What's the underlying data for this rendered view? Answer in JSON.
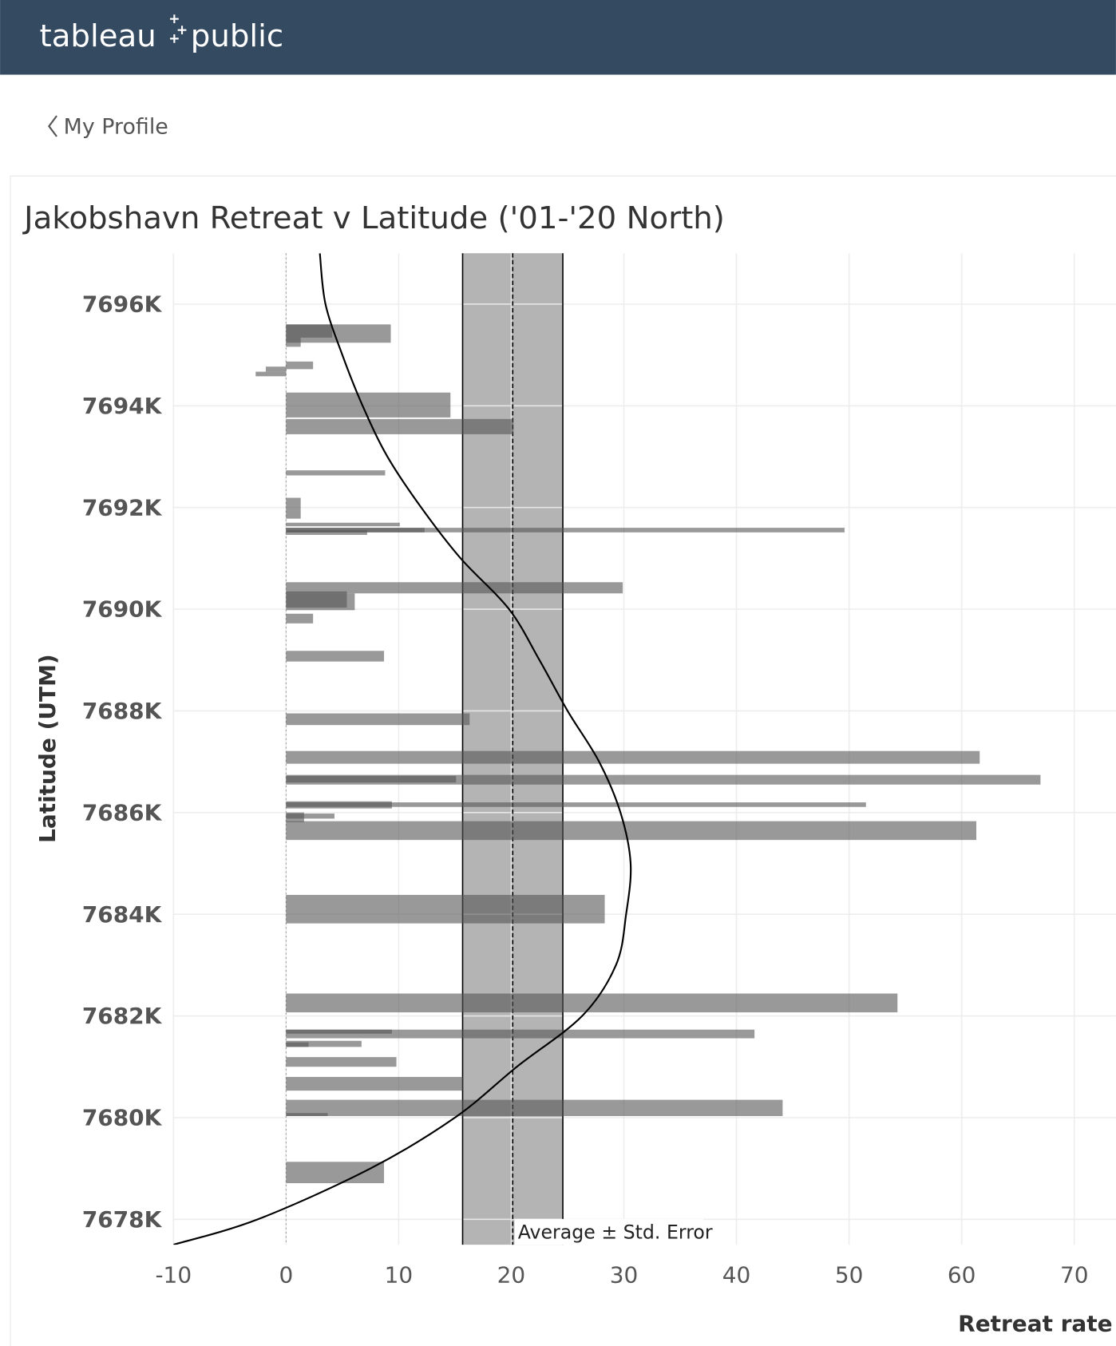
{
  "header": {
    "logo_left": "tableau",
    "logo_right": "public"
  },
  "nav": {
    "back": "My Profile"
  },
  "chart_data": {
    "type": "bar",
    "orientation": "horizontal",
    "title": "Jakobshavn Retreat v Latitude ('01-'20 North)",
    "x_label": "Retreat rate",
    "y_label": "Latitude (UTM)",
    "xlim": [
      -10,
      73.7
    ],
    "ylim": [
      7677.5,
      7697
    ],
    "xticks": [
      -10,
      0,
      10,
      20,
      30,
      40,
      50,
      60,
      70
    ],
    "yticks": [
      {
        "value": 7678,
        "label": "7678K"
      },
      {
        "value": 7680,
        "label": "7680K"
      },
      {
        "value": 7682,
        "label": "7682K"
      },
      {
        "value": 7684,
        "label": "7684K"
      },
      {
        "value": 7686,
        "label": "7686K"
      },
      {
        "value": 7688,
        "label": "7688K"
      },
      {
        "value": 7690,
        "label": "7690K"
      },
      {
        "value": 7692,
        "label": "7692K"
      },
      {
        "value": 7694,
        "label": "7694K"
      },
      {
        "value": 7696,
        "label": "7696K"
      }
    ],
    "grid": true,
    "zero_line": true,
    "bars": {
      "color": "#555555",
      "values": [
        9.3,
        4.1,
        1.3,
        2.4,
        -1.8,
        -2.7,
        14.6,
        20.2,
        8.8,
        1.3,
        10.1,
        49.6,
        12.3,
        7.2,
        29.9,
        6.1,
        5.4,
        2.4,
        8.7,
        16.3,
        61.6,
        67.0,
        15.1,
        51.5,
        9.4,
        4.3,
        1.6,
        61.3,
        28.3,
        54.3,
        41.6,
        9.4,
        6.7,
        2.0,
        9.8,
        15.7,
        44.1,
        3.7,
        8.7
      ],
      "lat_top": [
        7695.6,
        7695.6,
        7695.34,
        7694.87,
        7694.77,
        7694.67,
        7694.26,
        7693.74,
        7692.73,
        7692.19,
        7691.7,
        7691.6,
        7691.6,
        7691.55,
        7690.53,
        7690.31,
        7690.35,
        7689.91,
        7689.18,
        7687.95,
        7687.21,
        7686.74,
        7686.72,
        7686.2,
        7686.22,
        7685.98,
        7686.0,
        7685.83,
        7684.38,
        7682.44,
        7681.73,
        7681.73,
        7681.51,
        7681.48,
        7681.19,
        7680.8,
        7680.35,
        7680.09,
        7679.13
      ],
      "lat_bottom": [
        7695.24,
        7695.34,
        7695.16,
        7694.72,
        7694.67,
        7694.58,
        7693.77,
        7693.44,
        7692.63,
        7691.78,
        7691.63,
        7691.51,
        7691.51,
        7691.46,
        7690.31,
        7689.98,
        7690.03,
        7689.72,
        7688.97,
        7687.72,
        7686.96,
        7686.55,
        7686.59,
        7686.11,
        7686.08,
        7685.88,
        7685.81,
        7685.46,
        7683.82,
        7682.07,
        7681.56,
        7681.65,
        7681.39,
        7681.39,
        7681.0,
        7680.53,
        7680.03,
        7680.03,
        7678.71
      ]
    },
    "reference_band": {
      "label": "Average ± Std. Error",
      "average": 20.13,
      "std_error": 4.45,
      "color": "#b4b4b4"
    },
    "trend": {
      "color": "#000000",
      "lat": [
        7697,
        7696,
        7695,
        7694,
        7693,
        7692,
        7691,
        7690,
        7689,
        7688,
        7687,
        7686,
        7685,
        7684,
        7683,
        7682,
        7681,
        7680,
        7679,
        7678,
        7677.5
      ],
      "values": [
        3.0,
        3.5,
        5.0,
        6.8,
        9.0,
        12.0,
        15.5,
        19.8,
        22.5,
        25.0,
        27.8,
        29.7,
        30.6,
        30.2,
        29.3,
        26.3,
        20.5,
        15.0,
        7.5,
        -2.5,
        -10
      ]
    }
  }
}
